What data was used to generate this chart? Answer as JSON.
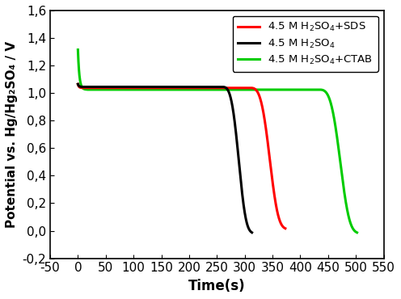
{
  "xlabel": "Time(s)",
  "ylabel": "Potential vs. Hg/Hg₂SO₄ / V",
  "xlim": [
    -50,
    550
  ],
  "ylim": [
    -0.2,
    1.6
  ],
  "xticks": [
    -50,
    0,
    50,
    100,
    150,
    200,
    250,
    300,
    350,
    400,
    450,
    500,
    550
  ],
  "yticks": [
    -0.2,
    0.0,
    0.2,
    0.4,
    0.6,
    0.8,
    1.0,
    1.2,
    1.4,
    1.6
  ],
  "black_curve": {
    "color": "#000000",
    "t_flat_end": 258,
    "t_drop_end": 313,
    "v_flat": 1.045,
    "v_end": -0.02
  },
  "red_curve": {
    "color": "#ff0000",
    "t_flat_end": 308,
    "t_drop_end": 373,
    "v_flat": 1.038,
    "v_end": 0.01
  },
  "green_curve": {
    "color": "#00cc00",
    "t_spike_end": 15,
    "t_flat_end": 432,
    "t_drop_end": 502,
    "v_spike": 1.315,
    "v_flat": 1.025,
    "v_end": -0.02
  },
  "linewidth": 2.2,
  "background_color": "#ffffff",
  "font_size": 12,
  "tick_font_size": 11,
  "legend_fontsize": 9.5
}
